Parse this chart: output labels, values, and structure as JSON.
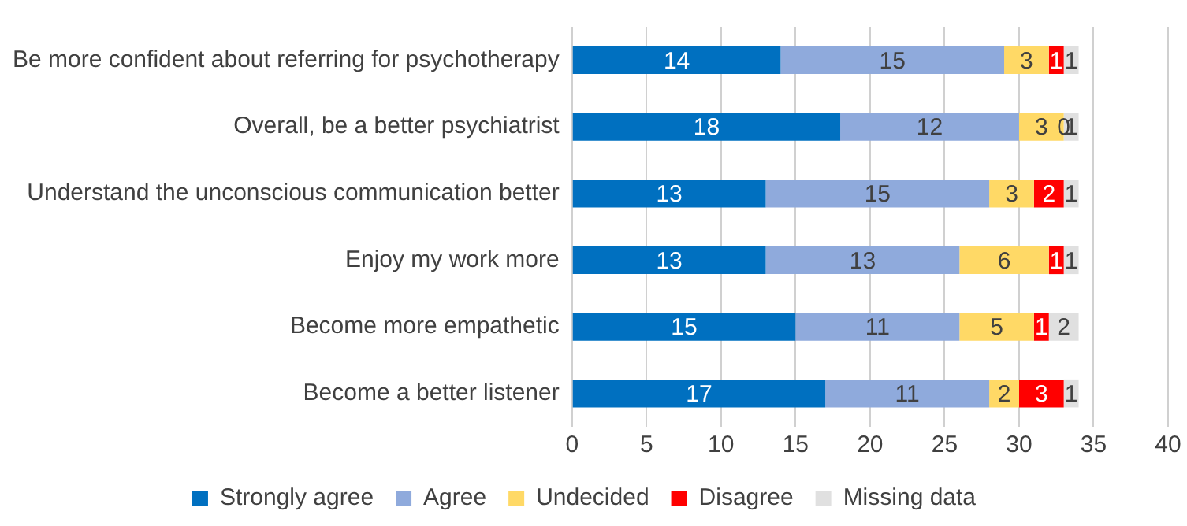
{
  "chart_data": {
    "type": "bar",
    "orientation": "horizontal",
    "stacked": true,
    "data_labels": true,
    "grid": "x",
    "legend": "bottom",
    "categories": [
      "Be more confident about referring for psychotherapy",
      "Overall, be a better psychiatrist",
      "Understand the unconscious communication better",
      "Enjoy my work more",
      "Become more empathetic",
      "Become a better listener"
    ],
    "series": [
      {
        "name": "Strongly agree",
        "color": "#0070c0",
        "values": [
          14,
          18,
          13,
          13,
          15,
          17
        ]
      },
      {
        "name": "Agree",
        "color": "#8faadc",
        "values": [
          15,
          12,
          15,
          13,
          11,
          11
        ]
      },
      {
        "name": "Undecided",
        "color": "#ffd966",
        "values": [
          3,
          3,
          3,
          6,
          5,
          2
        ]
      },
      {
        "name": "Disagree",
        "color": "#ff0000",
        "values": [
          1,
          0,
          2,
          1,
          1,
          3
        ]
      },
      {
        "name": "Missing data",
        "color": "#e0e0e0",
        "values": [
          1,
          1,
          1,
          1,
          2,
          1
        ]
      }
    ],
    "xlim": [
      0,
      40
    ],
    "xticks": [
      0,
      5,
      10,
      15,
      20,
      25,
      30,
      35,
      40
    ]
  }
}
